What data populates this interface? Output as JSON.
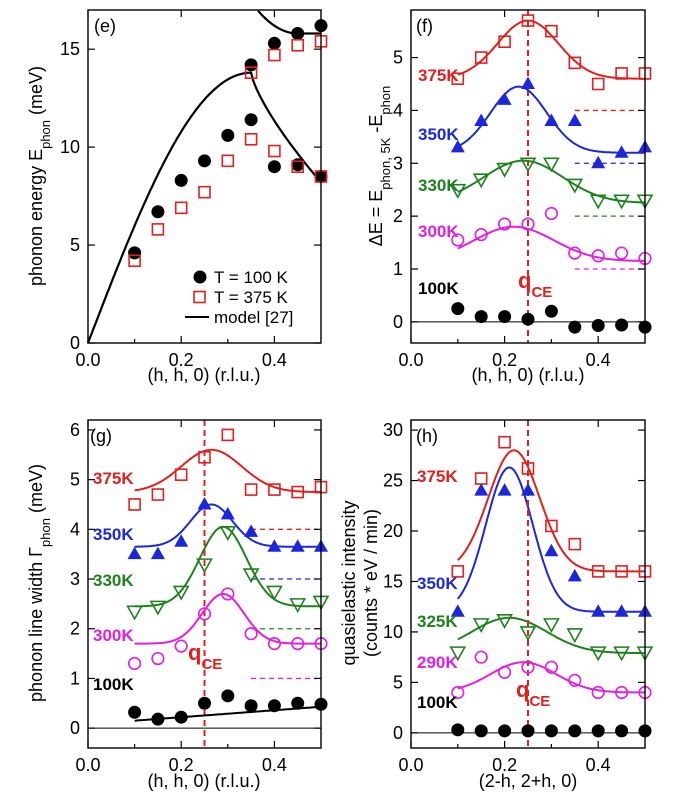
{
  "colors": {
    "k100": "#000000",
    "k290": "#e020e0",
    "k300": "#e020e0",
    "k325": "#208020",
    "k330": "#208020",
    "k350": "#1c28d8",
    "k375": "#e02020",
    "qce": "#e02020"
  },
  "chart_data": [
    {
      "id": "e",
      "type": "scatter",
      "panel_label": "(e)",
      "xlabel": "(h, h, 0) (r.l.u.)",
      "ylabel": "phonon energy E_phon (meV)",
      "ylabel_main": "phonon energy E",
      "ylabel_sub": "phon",
      "ylabel_tail": " (meV)",
      "xlim": [
        0,
        0.5
      ],
      "ylim": [
        0,
        17
      ],
      "xticks": [
        0.0,
        0.2,
        0.4
      ],
      "xticklabels": [
        "0.0",
        "0.2",
        "0.4"
      ],
      "yticks": [
        0,
        5,
        10,
        15
      ],
      "yticklabels": [
        "0",
        "5",
        "10",
        "15"
      ],
      "series": [
        {
          "name": "T = 100 K",
          "marker": "circle-filled",
          "color": "#000000",
          "x": [
            0.1,
            0.15,
            0.2,
            0.25,
            0.3,
            0.35,
            0.35,
            0.4,
            0.4,
            0.45,
            0.45,
            0.5,
            0.5
          ],
          "y": [
            4.6,
            6.7,
            8.3,
            9.3,
            10.6,
            11.4,
            14.2,
            9.0,
            15.3,
            9.1,
            15.8,
            8.5,
            16.2
          ]
        },
        {
          "name": "T = 375 K",
          "marker": "square-open",
          "color": "#e02020",
          "x": [
            0.1,
            0.15,
            0.2,
            0.25,
            0.3,
            0.35,
            0.35,
            0.4,
            0.4,
            0.45,
            0.45,
            0.5,
            0.5
          ],
          "y": [
            4.2,
            5.8,
            6.9,
            7.7,
            9.3,
            10.4,
            13.8,
            9.8,
            14.7,
            9.0,
            15.2,
            8.5,
            15.4
          ]
        },
        {
          "name": "model [27]",
          "marker": "line",
          "color": "#000000"
        }
      ],
      "legend": [
        "T = 100 K",
        "T = 375 K",
        "model [27]"
      ]
    },
    {
      "id": "f",
      "type": "scatter",
      "panel_label": "(f)",
      "xlabel": "(h, h, 0) (r.l.u.)",
      "ylabel": "ΔE = E_phon, 5K - E_phon",
      "ylabel_a": "ΔE = E",
      "ylabel_b": "phon, 5K",
      "ylabel_c": " -E",
      "ylabel_d": "phon",
      "xlim": [
        0,
        0.5
      ],
      "ylim": [
        -0.4,
        5.9
      ],
      "xticks": [
        0.0,
        0.2,
        0.4
      ],
      "xticklabels": [
        "0.0",
        "0.2",
        "0.4"
      ],
      "yticks": [
        0,
        1,
        2,
        3,
        4,
        5
      ],
      "yticklabels": [
        "0",
        "1",
        "2",
        "3",
        "4",
        "5"
      ],
      "q_ce": 0.25,
      "q_ce_label": "q",
      "q_ce_sub": "CE",
      "series": [
        {
          "name": "375K",
          "marker": "square-open",
          "color": "#e02020",
          "baseline": 4.0,
          "x": [
            0.1,
            0.15,
            0.2,
            0.25,
            0.3,
            0.35,
            0.4,
            0.45,
            0.5
          ],
          "y": [
            4.6,
            5.0,
            5.3,
            5.7,
            5.5,
            4.9,
            4.5,
            4.7,
            4.7
          ]
        },
        {
          "name": "350K",
          "marker": "triangle-up-filled",
          "color": "#1c28d8",
          "baseline": 3.0,
          "x": [
            0.1,
            0.15,
            0.2,
            0.25,
            0.3,
            0.35,
            0.4,
            0.45,
            0.5
          ],
          "y": [
            3.3,
            3.8,
            4.2,
            4.5,
            3.8,
            3.8,
            3.0,
            3.2,
            3.3
          ]
        },
        {
          "name": "330K",
          "marker": "triangle-down-open",
          "color": "#208020",
          "baseline": 2.0,
          "x": [
            0.1,
            0.15,
            0.2,
            0.25,
            0.3,
            0.35,
            0.4,
            0.45,
            0.5
          ],
          "y": [
            2.5,
            2.7,
            2.9,
            3.0,
            3.0,
            2.6,
            2.3,
            2.3,
            2.3
          ]
        },
        {
          "name": "300K",
          "marker": "circle-open",
          "color": "#e020e0",
          "baseline": 1.0,
          "x": [
            0.1,
            0.15,
            0.2,
            0.25,
            0.3,
            0.35,
            0.4,
            0.45,
            0.5
          ],
          "y": [
            1.55,
            1.65,
            1.85,
            1.85,
            2.05,
            1.3,
            1.25,
            1.3,
            1.2
          ]
        },
        {
          "name": "100K",
          "marker": "circle-filled",
          "color": "#000000",
          "baseline": 0.0,
          "x": [
            0.1,
            0.15,
            0.2,
            0.25,
            0.3,
            0.35,
            0.4,
            0.45,
            0.5
          ],
          "y": [
            0.25,
            0.1,
            0.1,
            0.05,
            0.2,
            -0.1,
            -0.07,
            -0.06,
            -0.1
          ]
        }
      ]
    },
    {
      "id": "g",
      "type": "scatter",
      "panel_label": "(g)",
      "xlabel": "(h, h, 0) (r.l.u.)",
      "ylabel": "phonon line width Γ_phon (meV)",
      "ylabel_main": "phonon line width Γ",
      "ylabel_sub": "phon",
      "ylabel_tail": " (meV)",
      "xlim": [
        0,
        0.5
      ],
      "ylim": [
        -0.4,
        6.2
      ],
      "xticks": [
        0.0,
        0.2,
        0.4
      ],
      "xticklabels": [
        "0.0",
        "0.2",
        "0.4"
      ],
      "yticks": [
        0,
        1,
        2,
        3,
        4,
        5,
        6
      ],
      "yticklabels": [
        "0",
        "1",
        "2",
        "3",
        "4",
        "5",
        "6"
      ],
      "q_ce": 0.25,
      "q_ce_label": "q",
      "q_ce_sub": "CE",
      "series": [
        {
          "name": "375K",
          "marker": "square-open",
          "color": "#e02020",
          "baseline": 4.0,
          "x": [
            0.1,
            0.15,
            0.2,
            0.25,
            0.3,
            0.35,
            0.4,
            0.45,
            0.5
          ],
          "y": [
            4.5,
            4.7,
            5.1,
            5.45,
            5.9,
            4.8,
            4.8,
            4.75,
            4.85
          ]
        },
        {
          "name": "350K",
          "marker": "triangle-up-filled",
          "color": "#1c28d8",
          "baseline": 3.0,
          "x": [
            0.1,
            0.15,
            0.2,
            0.25,
            0.3,
            0.35,
            0.4,
            0.45,
            0.5
          ],
          "y": [
            3.5,
            3.5,
            3.75,
            4.5,
            4.3,
            3.95,
            3.65,
            3.65,
            3.65
          ]
        },
        {
          "name": "330K",
          "marker": "triangle-down-open",
          "color": "#208020",
          "baseline": 2.0,
          "x": [
            0.1,
            0.15,
            0.2,
            0.25,
            0.3,
            0.35,
            0.4,
            0.45,
            0.5
          ],
          "y": [
            2.35,
            2.45,
            2.75,
            3.3,
            3.95,
            3.1,
            2.75,
            2.5,
            2.55
          ]
        },
        {
          "name": "300K",
          "marker": "circle-open",
          "color": "#e020e0",
          "baseline": 1.0,
          "x": [
            0.1,
            0.15,
            0.2,
            0.25,
            0.3,
            0.35,
            0.4,
            0.45,
            0.5
          ],
          "y": [
            1.3,
            1.4,
            1.65,
            2.3,
            2.7,
            1.9,
            1.7,
            1.7,
            1.7
          ]
        },
        {
          "name": "100K",
          "marker": "circle-filled",
          "color": "#000000",
          "baseline": 0.0,
          "x": [
            0.1,
            0.15,
            0.2,
            0.25,
            0.3,
            0.35,
            0.4,
            0.45,
            0.5
          ],
          "y": [
            0.32,
            0.18,
            0.22,
            0.5,
            0.65,
            0.45,
            0.45,
            0.5,
            0.48
          ]
        }
      ]
    },
    {
      "id": "h",
      "type": "scatter",
      "panel_label": "(h)",
      "xlabel": "(2-h, 2+h, 0)",
      "ylabel": "quasielastic intensity (counts * eV / min)",
      "ylabel_line1": "quasielastic intensity",
      "ylabel_line2": "(counts * eV / min)",
      "xlim": [
        0,
        0.5
      ],
      "ylim": [
        -1.5,
        31
      ],
      "xticks": [
        0.0,
        0.2,
        0.4
      ],
      "xticklabels": [
        "0.0",
        "0.2",
        "0.4"
      ],
      "yticks": [
        0,
        5,
        10,
        15,
        20,
        25,
        30
      ],
      "yticklabels": [
        "0",
        "5",
        "10",
        "15",
        "20",
        "25",
        "30"
      ],
      "q_ce": 0.25,
      "q_ce_label": "q",
      "q_ce_sub": "CE",
      "series": [
        {
          "name": "375K",
          "marker": "square-open",
          "color": "#e02020",
          "x": [
            0.1,
            0.15,
            0.2,
            0.25,
            0.3,
            0.35,
            0.4,
            0.45,
            0.5
          ],
          "y": [
            16.0,
            25.2,
            28.8,
            26.2,
            20.5,
            18.7,
            16.0,
            16.0,
            16.0
          ]
        },
        {
          "name": "350K",
          "marker": "triangle-up-filled",
          "color": "#1c28d8",
          "x": [
            0.1,
            0.15,
            0.2,
            0.25,
            0.3,
            0.35,
            0.4,
            0.45,
            0.5
          ],
          "y": [
            12.0,
            24.0,
            24.0,
            24.0,
            18.0,
            15.5,
            12.0,
            12.0,
            12.0
          ]
        },
        {
          "name": "325K",
          "marker": "triangle-down-open",
          "color": "#208020",
          "x": [
            0.1,
            0.15,
            0.2,
            0.25,
            0.3,
            0.35,
            0.4,
            0.45,
            0.5
          ],
          "y": [
            8.0,
            10.8,
            11.2,
            10.0,
            10.8,
            9.8,
            8.0,
            8.0,
            8.0
          ]
        },
        {
          "name": "290K",
          "marker": "circle-open",
          "color": "#e020e0",
          "x": [
            0.1,
            0.15,
            0.2,
            0.25,
            0.3,
            0.35,
            0.4,
            0.45,
            0.5
          ],
          "y": [
            4.0,
            7.5,
            6.0,
            6.5,
            6.5,
            5.2,
            4.0,
            4.0,
            4.0
          ]
        },
        {
          "name": "100K",
          "marker": "circle-filled",
          "color": "#000000",
          "x": [
            0.1,
            0.15,
            0.2,
            0.25,
            0.3,
            0.35,
            0.4,
            0.45,
            0.5
          ],
          "y": [
            0.3,
            0.2,
            0.2,
            0.2,
            0.2,
            0.2,
            0.2,
            0.2,
            0.2
          ]
        }
      ]
    }
  ]
}
